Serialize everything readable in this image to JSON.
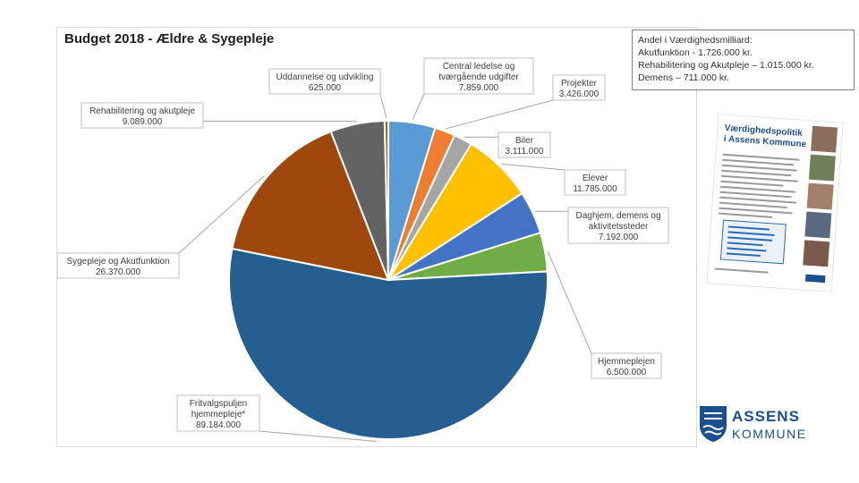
{
  "chart_data": {
    "type": "pie",
    "title": "Budget 2018 - Ældre & Sygepleje",
    "series": [
      {
        "lines": [
          "Central ledelse og",
          "tværgående udgifter",
          "7.859.000"
        ],
        "value": 7859000,
        "color": "#5b9bd5"
      },
      {
        "lines": [
          "Projekter",
          "3.426.000"
        ],
        "value": 3426000,
        "color": "#ed7d31"
      },
      {
        "lines": [
          "Biler",
          "3.111.000"
        ],
        "value": 3111000,
        "color": "#a5a5a5"
      },
      {
        "lines": [
          "Elever",
          "11.785.000"
        ],
        "value": 11785000,
        "color": "#ffc000"
      },
      {
        "lines": [
          "Daghjem, demens og",
          "aktivitetssteder",
          "7.192.000"
        ],
        "value": 7192000,
        "color": "#4472c4"
      },
      {
        "lines": [
          "Hjemmeplejen",
          "6.500.000"
        ],
        "value": 6500000,
        "color": "#70ad47"
      },
      {
        "lines": [
          "Fritvalgspuljen",
          "hjemmepleje*",
          "89.184.000"
        ],
        "value": 89184000,
        "color": "#255e91"
      },
      {
        "lines": [
          "Sygepleje og Akutfunktion",
          "26.370.000"
        ],
        "value": 26370000,
        "color": "#9e480e"
      },
      {
        "lines": [
          "Rehabilitering og akutpleje",
          "9.089.000"
        ],
        "value": 9089000,
        "color": "#636363"
      },
      {
        "lines": [
          "Uddannelse og udvikling",
          "625.000"
        ],
        "value": 625000,
        "color": "#997300"
      }
    ]
  },
  "info_box": {
    "lines": [
      "Andel i Værdighedsmilliard:",
      "Akutfunktion - 1.726.000 kr.",
      "Rehabilitering og Akutpleje – 1.015.000 kr.",
      "Demens – 711.000 kr."
    ]
  },
  "brochure": {
    "title_line_1": "Værdighedspolitik",
    "title_line_2": "i Assens Kommune"
  },
  "logo": {
    "line_1": "ASSENS",
    "line_2": "KOMMUNE"
  }
}
